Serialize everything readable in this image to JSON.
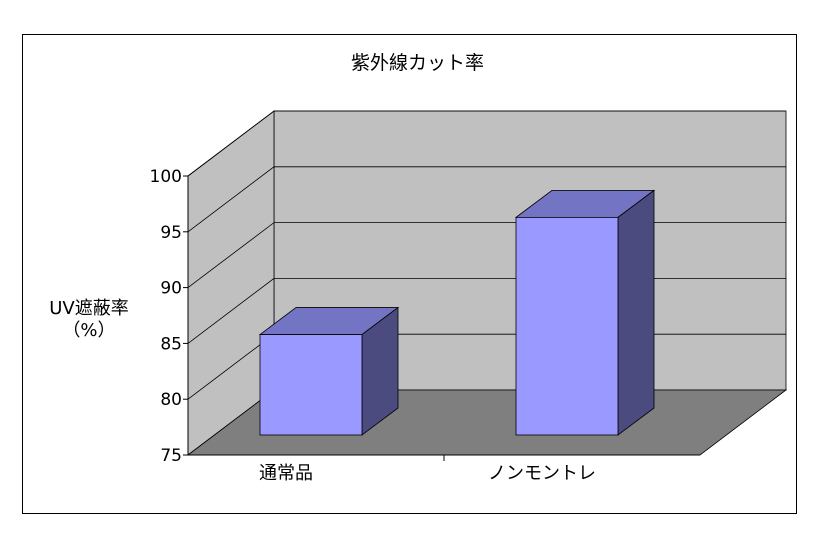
{
  "chart_data": {
    "type": "bar",
    "title": "紫外線カット率",
    "ylabel": [
      "UV遮蔽率",
      "（%）"
    ],
    "xlabel": "",
    "categories": [
      "通常品",
      "ノンモントレ"
    ],
    "values": [
      84,
      94.5
    ],
    "ylim": [
      75,
      100
    ],
    "yticks": [
      75,
      80,
      85,
      90,
      95,
      100
    ],
    "grid": true,
    "legend": "none",
    "style": "3d-column",
    "colors": {
      "bar_front": "#9999ff",
      "bar_top": "#7474c4",
      "bar_side": "#4b4b80",
      "wall": "#c0c0c0",
      "floor": "#7f7f7f"
    }
  }
}
